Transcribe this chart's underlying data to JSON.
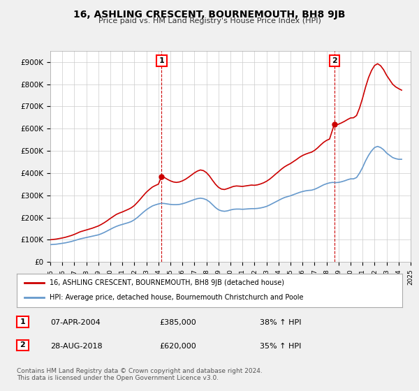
{
  "title": "16, ASHLING CRESCENT, BOURNEMOUTH, BH8 9JB",
  "subtitle": "Price paid vs. HM Land Registry's House Price Index (HPI)",
  "background_color": "#f0f0f0",
  "plot_bg_color": "#ffffff",
  "red_line_color": "#cc0000",
  "blue_line_color": "#6699cc",
  "dashed_red_color": "#cc0000",
  "ylim": [
    0,
    950000
  ],
  "yticks": [
    0,
    100000,
    200000,
    300000,
    400000,
    500000,
    600000,
    700000,
    800000,
    900000
  ],
  "ytick_labels": [
    "£0",
    "£100K",
    "£200K",
    "£300K",
    "£400K",
    "£500K",
    "£600K",
    "£700K",
    "£800K",
    "£900K"
  ],
  "marker1_year": 2004.27,
  "marker1_price": 385000,
  "marker1_label": "1",
  "marker2_year": 2018.65,
  "marker2_price": 620000,
  "marker2_label": "2",
  "legend_line1": "16, ASHLING CRESCENT, BOURNEMOUTH, BH8 9JB (detached house)",
  "legend_line2": "HPI: Average price, detached house, Bournemouth Christchurch and Poole",
  "table_row1": [
    "1",
    "07-APR-2004",
    "£385,000",
    "38% ↑ HPI"
  ],
  "table_row2": [
    "2",
    "28-AUG-2018",
    "£620,000",
    "35% ↑ HPI"
  ],
  "footer": "Contains HM Land Registry data © Crown copyright and database right 2024.\nThis data is licensed under the Open Government Licence v3.0.",
  "hpi_years": [
    1995.0,
    1995.25,
    1995.5,
    1995.75,
    1996.0,
    1996.25,
    1996.5,
    1996.75,
    1997.0,
    1997.25,
    1997.5,
    1997.75,
    1998.0,
    1998.25,
    1998.5,
    1998.75,
    1999.0,
    1999.25,
    1999.5,
    1999.75,
    2000.0,
    2000.25,
    2000.5,
    2000.75,
    2001.0,
    2001.25,
    2001.5,
    2001.75,
    2002.0,
    2002.25,
    2002.5,
    2002.75,
    2003.0,
    2003.25,
    2003.5,
    2003.75,
    2004.0,
    2004.25,
    2004.5,
    2004.75,
    2005.0,
    2005.25,
    2005.5,
    2005.75,
    2006.0,
    2006.25,
    2006.5,
    2006.75,
    2007.0,
    2007.25,
    2007.5,
    2007.75,
    2008.0,
    2008.25,
    2008.5,
    2008.75,
    2009.0,
    2009.25,
    2009.5,
    2009.75,
    2010.0,
    2010.25,
    2010.5,
    2010.75,
    2011.0,
    2011.25,
    2011.5,
    2011.75,
    2012.0,
    2012.25,
    2012.5,
    2012.75,
    2013.0,
    2013.25,
    2013.5,
    2013.75,
    2014.0,
    2014.25,
    2014.5,
    2014.75,
    2015.0,
    2015.25,
    2015.5,
    2015.75,
    2016.0,
    2016.25,
    2016.5,
    2016.75,
    2017.0,
    2017.25,
    2017.5,
    2017.75,
    2018.0,
    2018.25,
    2018.5,
    2018.75,
    2019.0,
    2019.25,
    2019.5,
    2019.75,
    2020.0,
    2020.25,
    2020.5,
    2020.75,
    2021.0,
    2021.25,
    2021.5,
    2021.75,
    2022.0,
    2022.25,
    2022.5,
    2022.75,
    2023.0,
    2023.25,
    2023.5,
    2023.75,
    2024.0,
    2024.25
  ],
  "hpi_values": [
    78000,
    79000,
    80000,
    82000,
    84000,
    86000,
    89000,
    92000,
    96000,
    100000,
    104000,
    107000,
    110000,
    113000,
    116000,
    119000,
    122000,
    127000,
    133000,
    140000,
    147000,
    154000,
    160000,
    165000,
    169000,
    173000,
    177000,
    182000,
    190000,
    200000,
    212000,
    224000,
    235000,
    244000,
    252000,
    257000,
    261000,
    264000,
    263000,
    261000,
    259000,
    258000,
    258000,
    259000,
    262000,
    266000,
    271000,
    276000,
    281000,
    285000,
    287000,
    285000,
    280000,
    271000,
    258000,
    245000,
    235000,
    230000,
    228000,
    230000,
    234000,
    237000,
    238000,
    238000,
    237000,
    238000,
    239000,
    240000,
    240000,
    241000,
    243000,
    246000,
    250000,
    256000,
    263000,
    270000,
    277000,
    284000,
    290000,
    294000,
    298000,
    303000,
    308000,
    313000,
    317000,
    320000,
    322000,
    323000,
    327000,
    333000,
    340000,
    347000,
    352000,
    356000,
    358000,
    357000,
    358000,
    361000,
    365000,
    370000,
    374000,
    374000,
    380000,
    400000,
    425000,
    455000,
    480000,
    500000,
    515000,
    520000,
    515000,
    505000,
    490000,
    480000,
    470000,
    465000,
    462000,
    462000
  ],
  "red_years": [
    1995.0,
    1995.25,
    1995.5,
    1995.75,
    1996.0,
    1996.25,
    1996.5,
    1996.75,
    1997.0,
    1997.25,
    1997.5,
    1997.75,
    1998.0,
    1998.25,
    1998.5,
    1998.75,
    1999.0,
    1999.25,
    1999.5,
    1999.75,
    2000.0,
    2000.25,
    2000.5,
    2000.75,
    2001.0,
    2001.25,
    2001.5,
    2001.75,
    2002.0,
    2002.25,
    2002.5,
    2002.75,
    2003.0,
    2003.25,
    2003.5,
    2003.75,
    2004.0,
    2004.27,
    2004.5,
    2004.75,
    2005.0,
    2005.25,
    2005.5,
    2005.75,
    2006.0,
    2006.25,
    2006.5,
    2006.75,
    2007.0,
    2007.25,
    2007.5,
    2007.75,
    2008.0,
    2008.25,
    2008.5,
    2008.75,
    2009.0,
    2009.25,
    2009.5,
    2009.75,
    2010.0,
    2010.25,
    2010.5,
    2010.75,
    2011.0,
    2011.25,
    2011.5,
    2011.75,
    2012.0,
    2012.25,
    2012.5,
    2012.75,
    2013.0,
    2013.25,
    2013.5,
    2013.75,
    2014.0,
    2014.25,
    2014.5,
    2014.75,
    2015.0,
    2015.25,
    2015.5,
    2015.75,
    2016.0,
    2016.25,
    2016.5,
    2016.75,
    2017.0,
    2017.25,
    2017.5,
    2017.75,
    2018.0,
    2018.25,
    2018.65,
    2018.75,
    2019.0,
    2019.25,
    2019.5,
    2019.75,
    2020.0,
    2020.25,
    2020.5,
    2020.75,
    2021.0,
    2021.25,
    2021.5,
    2021.75,
    2022.0,
    2022.25,
    2022.5,
    2022.75,
    2023.0,
    2023.25,
    2023.5,
    2023.75,
    2024.0,
    2024.25
  ],
  "red_values": [
    100000,
    101500,
    103000,
    105500,
    108000,
    111000,
    115000,
    119000,
    124000,
    130000,
    136000,
    140000,
    144000,
    148000,
    152000,
    157000,
    162000,
    169000,
    177000,
    186000,
    196000,
    205000,
    214000,
    220000,
    225000,
    231000,
    237000,
    244000,
    254000,
    268000,
    283000,
    299000,
    314000,
    326000,
    337000,
    344000,
    350000,
    385000,
    380000,
    372000,
    365000,
    360000,
    358000,
    360000,
    365000,
    372000,
    381000,
    391000,
    401000,
    409000,
    414000,
    411000,
    402000,
    387000,
    368000,
    350000,
    336000,
    328000,
    326000,
    330000,
    335000,
    340000,
    342000,
    341000,
    340000,
    342000,
    344000,
    346000,
    345000,
    347000,
    351000,
    356000,
    363000,
    372000,
    383000,
    395000,
    406000,
    418000,
    428000,
    436000,
    443000,
    452000,
    461000,
    471000,
    479000,
    485000,
    490000,
    494000,
    502000,
    513000,
    526000,
    538000,
    547000,
    553000,
    620000,
    616000,
    620000,
    626000,
    633000,
    641000,
    648000,
    649000,
    659000,
    693000,
    737000,
    787000,
    830000,
    862000,
    884000,
    892000,
    883000,
    865000,
    840000,
    820000,
    800000,
    788000,
    780000,
    773000
  ]
}
